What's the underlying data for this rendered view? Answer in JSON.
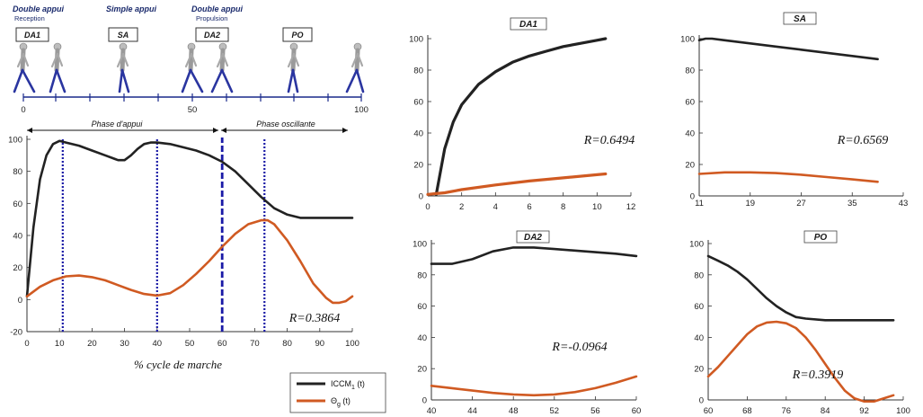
{
  "header": {
    "phase_groups": [
      {
        "title": "Double appui",
        "sub": "Reception"
      },
      {
        "title": "Simple appui",
        "sub": ""
      },
      {
        "title": "Double appui",
        "sub": "Propulsion"
      }
    ],
    "boxes": [
      "DA1",
      "SA",
      "DA2",
      "PO"
    ],
    "scale_ticks": [
      "0",
      "50",
      "100"
    ],
    "phase_appui": "Phase d'appui",
    "phase_oscillante": "Phase oscillante"
  },
  "legend": {
    "entries": [
      {
        "label": "ICCM",
        "sub": "1",
        "suffix": " (t)",
        "color": "#222222"
      },
      {
        "label": "Θ",
        "sub": "g",
        "suffix": " (t)",
        "color": "#d05a22"
      }
    ]
  },
  "colors": {
    "black_series": "#222222",
    "orange_series": "#d05a22",
    "dashed_lines": "#1a1aa6"
  },
  "chart_data": [
    {
      "id": "main",
      "type": "line",
      "title": "",
      "xlabel": "% cycle de marche",
      "xlim": [
        0,
        100
      ],
      "ylim": [
        -20,
        100
      ],
      "xticks": [
        0,
        10,
        20,
        30,
        40,
        50,
        60,
        70,
        80,
        90,
        100
      ],
      "yticks": [
        -20,
        0,
        20,
        40,
        60,
        80,
        100
      ],
      "annotation": "R=0.3864",
      "vlines": [
        {
          "x": 11,
          "style": "dotted"
        },
        {
          "x": 40,
          "style": "dotted"
        },
        {
          "x": 60,
          "style": "dashed"
        },
        {
          "x": 73,
          "style": "dotted"
        }
      ],
      "series": [
        {
          "color": "#222222",
          "x": [
            0,
            2,
            4,
            6,
            8,
            10,
            12,
            16,
            20,
            24,
            28,
            30,
            32,
            34,
            36,
            38,
            40,
            44,
            48,
            52,
            56,
            60,
            64,
            68,
            72,
            76,
            80,
            84,
            88,
            92,
            96,
            100
          ],
          "y": [
            2,
            45,
            75,
            90,
            97,
            99,
            98,
            96,
            93,
            90,
            87,
            87,
            90,
            94,
            97,
            98,
            98,
            97,
            95,
            93,
            90,
            86,
            80,
            72,
            64,
            57,
            53,
            51,
            51,
            51,
            51,
            51
          ]
        },
        {
          "color": "#d05a22",
          "x": [
            0,
            4,
            8,
            12,
            16,
            20,
            24,
            28,
            32,
            36,
            40,
            44,
            48,
            52,
            56,
            60,
            64,
            68,
            72,
            74,
            76,
            80,
            84,
            88,
            92,
            94,
            96,
            98,
            100
          ],
          "y": [
            2,
            8,
            12,
            14.5,
            15,
            14,
            12,
            9,
            6,
            3.5,
            2.5,
            4,
            9,
            16,
            24,
            33,
            41,
            47,
            49.5,
            49.5,
            47,
            37,
            24,
            10,
            1,
            -2,
            -2,
            -1,
            2
          ]
        }
      ]
    },
    {
      "id": "DA1",
      "type": "line",
      "title": "DA1",
      "xlim": [
        0,
        12
      ],
      "ylim": [
        0,
        100
      ],
      "xticks": [
        0,
        2,
        4,
        6,
        8,
        10,
        12
      ],
      "yticks": [
        0,
        20,
        40,
        60,
        80,
        100
      ],
      "annotation": "R=0.6494",
      "series": [
        {
          "color": "#222222",
          "x": [
            0.5,
            1,
            1.5,
            2,
            3,
            4,
            5,
            6,
            7,
            8,
            9,
            10,
            10.5
          ],
          "y": [
            1,
            30,
            47,
            58,
            71,
            79,
            85,
            89,
            92,
            95,
            97,
            99,
            100
          ]
        },
        {
          "color": "#d05a22",
          "x": [
            0,
            0.5,
            1,
            2,
            4,
            6,
            8,
            10,
            10.5
          ],
          "y": [
            1,
            1.5,
            2,
            4,
            7,
            9.5,
            11.5,
            13.5,
            14
          ]
        }
      ]
    },
    {
      "id": "SA",
      "type": "line",
      "title": "SA",
      "xlim": [
        11,
        43
      ],
      "ylim": [
        0,
        100
      ],
      "xticks": [
        11,
        19,
        27,
        35,
        43
      ],
      "yticks": [
        0,
        20,
        40,
        60,
        80,
        100
      ],
      "annotation": "R=0.6569",
      "series": [
        {
          "color": "#222222",
          "x": [
            11,
            12,
            13,
            15,
            19,
            23,
            27,
            31,
            35,
            39
          ],
          "y": [
            99,
            100,
            100,
            99,
            97,
            95,
            93,
            91,
            89,
            87
          ]
        },
        {
          "color": "#d05a22",
          "x": [
            11,
            15,
            19,
            23,
            27,
            31,
            35,
            39
          ],
          "y": [
            14,
            15,
            15,
            14.5,
            13.5,
            12,
            10.5,
            9
          ]
        }
      ]
    },
    {
      "id": "DA2",
      "type": "line",
      "title": "DA2",
      "xlim": [
        40,
        60
      ],
      "ylim": [
        0,
        100
      ],
      "xticks": [
        40,
        44,
        48,
        52,
        56,
        60
      ],
      "yticks": [
        0,
        20,
        40,
        60,
        80,
        100
      ],
      "annotation": "R=-0.0964",
      "series": [
        {
          "color": "#222222",
          "x": [
            40,
            42,
            44,
            46,
            48,
            50,
            52,
            54,
            56,
            58,
            60
          ],
          "y": [
            87,
            87,
            90,
            95,
            97.5,
            97.5,
            96.5,
            95.5,
            94.5,
            93.5,
            92
          ]
        },
        {
          "color": "#d05a22",
          "x": [
            40,
            42,
            44,
            46,
            48,
            50,
            52,
            54,
            56,
            58,
            60
          ],
          "y": [
            9,
            7.5,
            6,
            4.5,
            3.5,
            3,
            3.5,
            5,
            7.5,
            11,
            15
          ]
        }
      ]
    },
    {
      "id": "PO",
      "type": "line",
      "title": "PO",
      "xlim": [
        60,
        100
      ],
      "ylim": [
        0,
        100
      ],
      "xticks": [
        60,
        68,
        76,
        84,
        92,
        100
      ],
      "yticks": [
        0,
        20,
        40,
        60,
        80,
        100
      ],
      "annotation": "R=0.3919",
      "series": [
        {
          "color": "#222222",
          "x": [
            60,
            62,
            64,
            66,
            68,
            70,
            72,
            74,
            76,
            78,
            80,
            84,
            88,
            92,
            96,
            98
          ],
          "y": [
            92,
            89,
            86,
            82,
            77,
            71,
            65,
            60,
            56,
            53,
            52,
            51,
            51,
            51,
            51,
            51
          ]
        },
        {
          "color": "#d05a22",
          "x": [
            60,
            62,
            64,
            66,
            68,
            70,
            72,
            74,
            76,
            78,
            80,
            82,
            84,
            86,
            88,
            90,
            92,
            94,
            96,
            98
          ],
          "y": [
            15,
            21,
            28,
            35,
            42,
            47,
            49.5,
            50,
            49,
            46,
            40,
            32,
            23,
            14,
            6,
            1,
            -1,
            -1,
            1,
            3
          ]
        }
      ]
    }
  ]
}
